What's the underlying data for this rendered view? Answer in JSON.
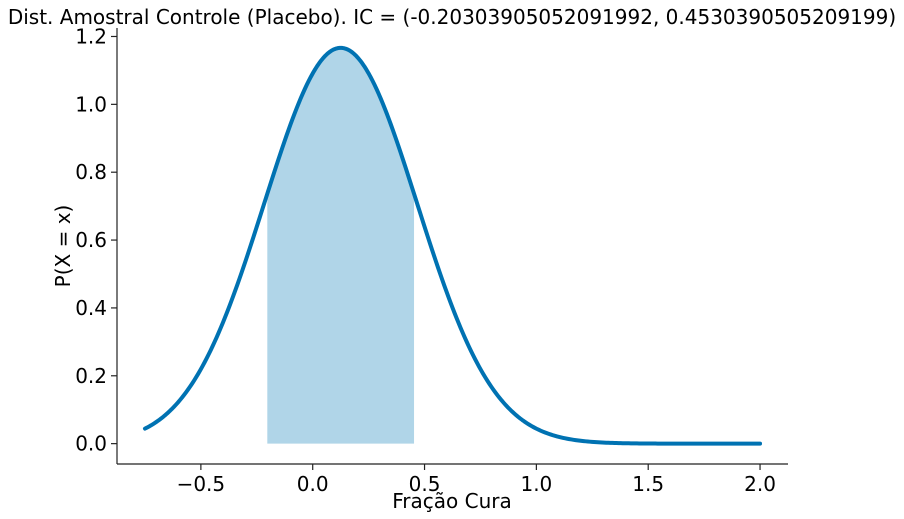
{
  "chart_data": {
    "type": "area",
    "title": "Dist. Amostral Controle (Placebo). IC = (-0.20303905052091992, 0.4530390505209199)",
    "xlabel": "Fração Cura",
    "ylabel": "P(X = x)",
    "xlim": [
      -0.875,
      2.125
    ],
    "ylim": [
      -0.06,
      1.225
    ],
    "xticks": [
      -0.5,
      0.0,
      0.5,
      1.0,
      1.5,
      2.0
    ],
    "xtick_labels": [
      "−0.5",
      "0.0",
      "0.5",
      "1.0",
      "1.5",
      "2.0"
    ],
    "yticks": [
      0.0,
      0.2,
      0.4,
      0.6,
      0.8,
      1.0,
      1.2
    ],
    "ytick_labels": [
      "0.0",
      "0.2",
      "0.4",
      "0.6",
      "0.8",
      "1.0",
      "1.2"
    ],
    "grid": false,
    "series": [
      {
        "kind": "line",
        "distribution": "normal",
        "mean": 0.125,
        "std": 0.342,
        "x_range": [
          -0.75,
          2.0
        ],
        "color": "#0072b2"
      }
    ],
    "shaded_interval": {
      "x_range": [
        -0.20303905052091992,
        0.4530390505209199
      ],
      "color": "#b0d5e8"
    }
  }
}
